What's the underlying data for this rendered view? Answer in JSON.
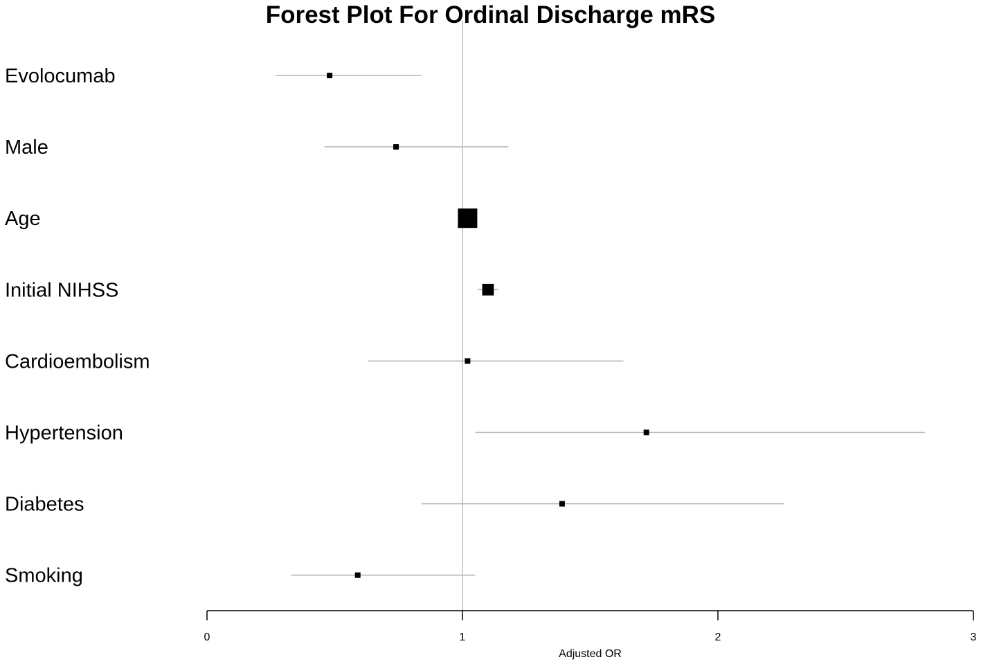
{
  "chart_data": {
    "type": "forest",
    "title": "Forest Plot For Ordinal Discharge mRS",
    "xlabel": "Adjusted OR",
    "ylabel": "",
    "xlim": [
      0,
      3
    ],
    "x_ticks": [
      "0",
      "1",
      "2",
      "3"
    ],
    "reference_line": 1,
    "grid": false,
    "rows": [
      {
        "label": "Evolocumab",
        "estimate": 0.48,
        "lower": 0.27,
        "upper": 0.84,
        "weight": 1
      },
      {
        "label": "Male",
        "estimate": 0.74,
        "lower": 0.46,
        "upper": 1.18,
        "weight": 1
      },
      {
        "label": "Age",
        "estimate": 1.02,
        "lower": 1.01,
        "upper": 1.03,
        "weight": 3.5
      },
      {
        "label": "Initial NIHSS",
        "estimate": 1.1,
        "lower": 1.06,
        "upper": 1.14,
        "weight": 2.1
      },
      {
        "label": "Cardioembolism",
        "estimate": 1.02,
        "lower": 0.63,
        "upper": 1.63,
        "weight": 1
      },
      {
        "label": "Hypertension",
        "estimate": 1.72,
        "lower": 1.05,
        "upper": 2.81,
        "weight": 1
      },
      {
        "label": "Diabetes",
        "estimate": 1.39,
        "lower": 0.84,
        "upper": 2.26,
        "weight": 1
      },
      {
        "label": "Smoking",
        "estimate": 0.59,
        "lower": 0.33,
        "upper": 1.05,
        "weight": 1
      }
    ],
    "colors": {
      "ci_line": "#b4b4b4",
      "reference_line": "#bdbdbd",
      "marker": "#000000",
      "axis": "#000000"
    }
  }
}
